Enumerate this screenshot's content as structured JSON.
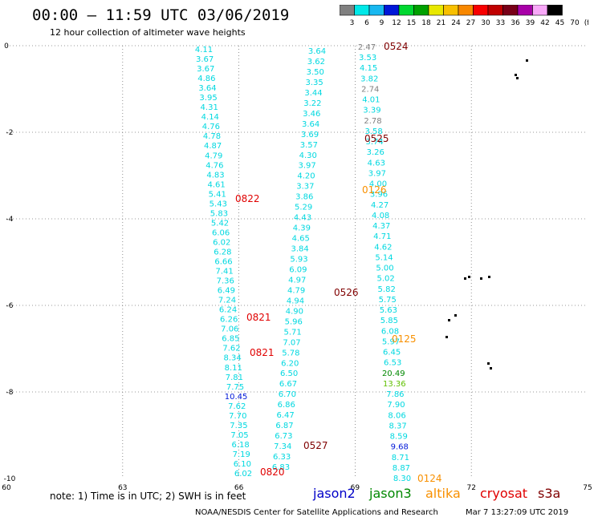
{
  "header": {
    "title": "00:00 — 11:59 UTC 03/06/2019",
    "subtitle": "12 hour collection of altimeter wave heights"
  },
  "legend": {
    "colors": [
      "#808080",
      "#00e8e8",
      "#18b8f0",
      "#0018d8",
      "#00d830",
      "#00a000",
      "#e8e800",
      "#f8c000",
      "#f88800",
      "#f80000",
      "#c00000",
      "#780018",
      "#a800a8",
      "#f8a8f8",
      "#000000"
    ],
    "labels": [
      "3",
      "6",
      "9",
      "12",
      "15",
      "18",
      "21",
      "24",
      "27",
      "30",
      "33",
      "36",
      "39",
      "42",
      "45",
      "70",
      "(ft)"
    ]
  },
  "axes": {
    "x_ticks": [
      "60",
      "63",
      "66",
      "69",
      "72",
      "75"
    ],
    "y_ticks": [
      "0",
      "-2",
      "-4",
      "-6",
      "-8",
      "-10"
    ]
  },
  "footer": {
    "note": "note: 1) Time is in UTC; 2) SWH is in feet",
    "satellites": [
      {
        "name": "jason2",
        "color": "#0000c8"
      },
      {
        "name": "jason3",
        "color": "#008800"
      },
      {
        "name": "altika",
        "color": "#f89000"
      },
      {
        "name": "cryosat",
        "color": "#e00000"
      },
      {
        "name": "s3a",
        "color": "#800000"
      }
    ],
    "credit": "NOAA/NESDIS Center for Satellite Applications and Research",
    "timestamp": "Mar  7 13:27:09 UTC 2019"
  },
  "map": {
    "lon_range": [
      60,
      75
    ],
    "lat_range": [
      -10,
      0
    ],
    "tracks": [
      {
        "id": "track-cryosat-west",
        "values": [
          "4.11",
          "3.67",
          "3.67",
          "4.86",
          "3.64",
          "3.95",
          "4.31",
          "4.14",
          "4.76",
          "4.78",
          "4.87",
          "4.79",
          "4.76",
          "4.83",
          "4.61",
          "5.41",
          "5.43",
          "5.83",
          "5.42",
          "6.06",
          "6.02",
          "6.28",
          "6.66",
          "7.41",
          "7.36",
          "6.49",
          "7.24",
          "6.24",
          "6.26",
          "7.06",
          "6.85",
          "7.62",
          "8.34",
          "8.11",
          "7.81",
          "7.75",
          "10.45",
          "7.62",
          "7.70",
          "7.35",
          "7.05",
          "6.18",
          "7.19",
          "6.10",
          "6.02"
        ],
        "colors": {
          "10.45": "#0018d8"
        }
      },
      {
        "id": "track-s3a-west",
        "values": [
          "3.64",
          "3.62",
          "3.50",
          "3.35",
          "3.44",
          "3.22",
          "3.46",
          "3.64",
          "3.69",
          "3.57",
          "4.30",
          "3.97",
          "4.20",
          "3.37",
          "3.86",
          "5.29",
          "4.43",
          "4.39",
          "4.65",
          "3.84",
          "5.93",
          "6.09",
          "4.97",
          "4.79",
          "4.94",
          "4.90",
          "5.96",
          "5.71",
          "7.07",
          "5.78",
          "6.20",
          "6.50",
          "6.67",
          "6.70",
          "6.86",
          "6.47",
          "6.87",
          "6.73",
          "7.34",
          "6.33",
          "6.83"
        ]
      },
      {
        "id": "track-s3a-east",
        "values": [
          "2.47",
          "3.53",
          "4.15",
          "3.82",
          "2.74",
          "4.01",
          "3.39",
          "2.78",
          "3.58",
          "3.74",
          "3.26",
          "4.63",
          "3.97",
          "4.00",
          "3.96",
          "4.27",
          "4.08",
          "4.37",
          "4.71",
          "4.62",
          "5.14",
          "5.00",
          "5.02",
          "5.82",
          "5.75",
          "5.63",
          "5.85",
          "6.08",
          "5.97",
          "6.45",
          "6.53",
          "20.49",
          "13.36",
          "7.86",
          "7.90",
          "8.06",
          "8.37",
          "8.59",
          "9.68",
          "8.71",
          "8.87",
          "8.30"
        ],
        "colors": {
          "2.47": "#808080",
          "2.74": "#808080",
          "2.78": "#808080",
          "20.49": "#008800",
          "13.36": "#60c000",
          "9.68": "#0018d8"
        }
      }
    ],
    "pass_times": [
      {
        "label": "0524",
        "color": "#800000"
      },
      {
        "label": "0525",
        "color": "#800000"
      },
      {
        "label": "0126",
        "color": "#f89000"
      },
      {
        "label": "0822",
        "color": "#e00000"
      },
      {
        "label": "0526",
        "color": "#800000"
      },
      {
        "label": "0821",
        "color": "#e00000"
      },
      {
        "label": "0125",
        "color": "#f89000"
      },
      {
        "label": "0821",
        "color": "#e00000"
      },
      {
        "label": "0527",
        "color": "#800000"
      },
      {
        "label": "0820",
        "color": "#e00000"
      },
      {
        "label": "0124",
        "color": "#f89000"
      }
    ]
  }
}
